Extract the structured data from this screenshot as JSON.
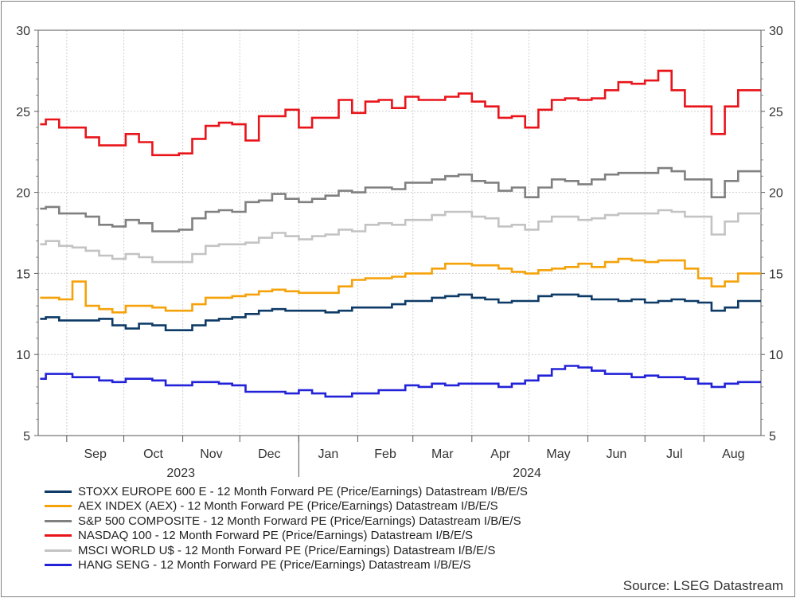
{
  "chart_data": {
    "type": "line",
    "ylim": [
      5,
      30
    ],
    "yticks": [
      "5",
      "10",
      "15",
      "20",
      "25",
      "30"
    ],
    "months": [
      {
        "label": "Sep",
        "start": "2023-09-01"
      },
      {
        "label": "Oct",
        "start": "2023-10-01"
      },
      {
        "label": "Nov",
        "start": "2023-11-01"
      },
      {
        "label": "Dec",
        "start": "2023-12-01"
      },
      {
        "label": "Jan",
        "start": "2024-01-01"
      },
      {
        "label": "Feb",
        "start": "2024-02-01"
      },
      {
        "label": "Mar",
        "start": "2024-03-01"
      },
      {
        "label": "Apr",
        "start": "2024-04-01"
      },
      {
        "label": "May",
        "start": "2024-05-01"
      },
      {
        "label": "Jun",
        "start": "2024-06-01"
      },
      {
        "label": "Jul",
        "start": "2024-07-01"
      },
      {
        "label": "Aug",
        "start": "2024-08-01"
      }
    ],
    "years": [
      {
        "label": "2023",
        "date": "2023-10-31"
      },
      {
        "label": "2024",
        "date": "2024-04-30"
      }
    ],
    "series": [
      {
        "name": "STOXX EUROPE 600 E - 12 Month Forward PE (Price/Earnings) Datastream I/B/E/S",
        "color": "#0d3a66",
        "x": [
          "2023-08-18",
          "2023-08-21",
          "2023-08-28",
          "2023-09-04",
          "2023-09-11",
          "2023-09-18",
          "2023-09-25",
          "2023-10-02",
          "2023-10-09",
          "2023-10-16",
          "2023-10-23",
          "2023-10-30",
          "2023-11-06",
          "2023-11-13",
          "2023-11-20",
          "2023-11-27",
          "2023-12-04",
          "2023-12-11",
          "2023-12-18",
          "2023-12-25",
          "2024-01-01",
          "2024-01-08",
          "2024-01-15",
          "2024-01-22",
          "2024-01-29",
          "2024-02-05",
          "2024-02-12",
          "2024-02-19",
          "2024-02-26",
          "2024-03-04",
          "2024-03-11",
          "2024-03-18",
          "2024-03-25",
          "2024-04-01",
          "2024-04-08",
          "2024-04-15",
          "2024-04-22",
          "2024-04-29",
          "2024-05-06",
          "2024-05-13",
          "2024-05-20",
          "2024-05-27",
          "2024-06-03",
          "2024-06-10",
          "2024-06-17",
          "2024-06-24",
          "2024-07-01",
          "2024-07-08",
          "2024-07-15",
          "2024-07-22",
          "2024-07-29",
          "2024-08-05",
          "2024-08-12",
          "2024-08-19",
          "2024-08-26"
        ],
        "values": [
          12.2,
          12.3,
          12.1,
          12.1,
          12.1,
          12.2,
          11.8,
          11.6,
          11.9,
          11.8,
          11.5,
          11.5,
          11.8,
          12.1,
          12.2,
          12.3,
          12.5,
          12.7,
          12.8,
          12.7,
          12.7,
          12.7,
          12.6,
          12.7,
          12.9,
          12.9,
          12.9,
          13.1,
          13.3,
          13.3,
          13.5,
          13.6,
          13.7,
          13.5,
          13.4,
          13.2,
          13.3,
          13.3,
          13.6,
          13.7,
          13.7,
          13.6,
          13.4,
          13.4,
          13.3,
          13.4,
          13.2,
          13.3,
          13.4,
          13.3,
          13.2,
          12.7,
          12.9,
          13.3,
          13.3
        ]
      },
      {
        "name": "AEX INDEX (AEX) - 12 Month Forward PE (Price/Earnings) Datastream I/B/E/S",
        "color": "#f5a20a",
        "x": [
          "2023-08-18",
          "2023-08-21",
          "2023-08-28",
          "2023-09-04",
          "2023-09-11",
          "2023-09-18",
          "2023-09-25",
          "2023-10-02",
          "2023-10-09",
          "2023-10-16",
          "2023-10-23",
          "2023-10-30",
          "2023-11-06",
          "2023-11-13",
          "2023-11-20",
          "2023-11-27",
          "2023-12-04",
          "2023-12-11",
          "2023-12-18",
          "2023-12-25",
          "2024-01-01",
          "2024-01-08",
          "2024-01-15",
          "2024-01-22",
          "2024-01-29",
          "2024-02-05",
          "2024-02-12",
          "2024-02-19",
          "2024-02-26",
          "2024-03-04",
          "2024-03-11",
          "2024-03-18",
          "2024-03-25",
          "2024-04-01",
          "2024-04-08",
          "2024-04-15",
          "2024-04-22",
          "2024-04-29",
          "2024-05-06",
          "2024-05-13",
          "2024-05-20",
          "2024-05-27",
          "2024-06-03",
          "2024-06-10",
          "2024-06-17",
          "2024-06-24",
          "2024-07-01",
          "2024-07-08",
          "2024-07-15",
          "2024-07-22",
          "2024-07-29",
          "2024-08-05",
          "2024-08-12",
          "2024-08-19",
          "2024-08-26"
        ],
        "values": [
          13.5,
          13.5,
          13.4,
          14.5,
          13.0,
          12.8,
          12.6,
          13.0,
          13.0,
          12.9,
          12.7,
          12.7,
          13.1,
          13.5,
          13.5,
          13.6,
          13.7,
          13.9,
          14.0,
          13.9,
          13.8,
          13.8,
          13.8,
          14.2,
          14.6,
          14.7,
          14.7,
          14.8,
          15.0,
          15.0,
          15.3,
          15.6,
          15.6,
          15.5,
          15.5,
          15.3,
          15.1,
          15.0,
          15.2,
          15.3,
          15.4,
          15.6,
          15.4,
          15.7,
          15.9,
          15.8,
          15.7,
          15.8,
          15.8,
          15.3,
          14.7,
          14.2,
          14.5,
          15.0,
          15.0
        ]
      },
      {
        "name": "S&P 500 COMPOSITE - 12 Month Forward PE (Price/Earnings) Datastream I/B/E/S",
        "color": "#808080",
        "x": [
          "2023-08-18",
          "2023-08-21",
          "2023-08-28",
          "2023-09-04",
          "2023-09-11",
          "2023-09-18",
          "2023-09-25",
          "2023-10-02",
          "2023-10-09",
          "2023-10-16",
          "2023-10-23",
          "2023-10-30",
          "2023-11-06",
          "2023-11-13",
          "2023-11-20",
          "2023-11-27",
          "2023-12-04",
          "2023-12-11",
          "2023-12-18",
          "2023-12-25",
          "2024-01-01",
          "2024-01-08",
          "2024-01-15",
          "2024-01-22",
          "2024-01-29",
          "2024-02-05",
          "2024-02-12",
          "2024-02-19",
          "2024-02-26",
          "2024-03-04",
          "2024-03-11",
          "2024-03-18",
          "2024-03-25",
          "2024-04-01",
          "2024-04-08",
          "2024-04-15",
          "2024-04-22",
          "2024-04-29",
          "2024-05-06",
          "2024-05-13",
          "2024-05-20",
          "2024-05-27",
          "2024-06-03",
          "2024-06-10",
          "2024-06-17",
          "2024-06-24",
          "2024-07-01",
          "2024-07-08",
          "2024-07-15",
          "2024-07-22",
          "2024-07-29",
          "2024-08-05",
          "2024-08-12",
          "2024-08-19",
          "2024-08-26"
        ],
        "values": [
          19.0,
          19.1,
          18.7,
          18.7,
          18.5,
          18.0,
          17.9,
          18.3,
          18.1,
          17.6,
          17.6,
          17.7,
          18.4,
          18.8,
          18.9,
          18.8,
          19.4,
          19.5,
          19.9,
          19.6,
          19.4,
          19.6,
          19.8,
          20.1,
          20.0,
          20.3,
          20.3,
          20.2,
          20.6,
          20.6,
          20.8,
          21.0,
          21.1,
          20.7,
          20.6,
          20.1,
          20.3,
          19.7,
          20.3,
          20.8,
          20.7,
          20.5,
          20.8,
          21.1,
          21.2,
          21.2,
          21.2,
          21.5,
          21.3,
          20.8,
          20.8,
          19.7,
          20.7,
          21.3,
          21.3
        ]
      },
      {
        "name": "NASDAQ 100 - 12 Month Forward PE (Price/Earnings) Datastream I/B/E/S",
        "color": "#e8141a",
        "x": [
          "2023-08-18",
          "2023-08-21",
          "2023-08-28",
          "2023-09-04",
          "2023-09-11",
          "2023-09-18",
          "2023-09-25",
          "2023-10-02",
          "2023-10-09",
          "2023-10-16",
          "2023-10-23",
          "2023-10-30",
          "2023-11-06",
          "2023-11-13",
          "2023-11-20",
          "2023-11-27",
          "2023-12-04",
          "2023-12-11",
          "2023-12-18",
          "2023-12-25",
          "2024-01-01",
          "2024-01-08",
          "2024-01-15",
          "2024-01-22",
          "2024-01-29",
          "2024-02-05",
          "2024-02-12",
          "2024-02-19",
          "2024-02-26",
          "2024-03-04",
          "2024-03-11",
          "2024-03-18",
          "2024-03-25",
          "2024-04-01",
          "2024-04-08",
          "2024-04-15",
          "2024-04-22",
          "2024-04-29",
          "2024-05-06",
          "2024-05-13",
          "2024-05-20",
          "2024-05-27",
          "2024-06-03",
          "2024-06-10",
          "2024-06-17",
          "2024-06-24",
          "2024-07-01",
          "2024-07-08",
          "2024-07-15",
          "2024-07-22",
          "2024-07-29",
          "2024-08-05",
          "2024-08-12",
          "2024-08-19",
          "2024-08-26"
        ],
        "values": [
          24.2,
          24.5,
          24.0,
          24.0,
          23.4,
          22.9,
          22.9,
          23.6,
          23.1,
          22.3,
          22.3,
          22.4,
          23.3,
          24.1,
          24.3,
          24.2,
          23.2,
          24.7,
          24.7,
          25.1,
          24.0,
          24.6,
          24.6,
          25.7,
          24.9,
          25.6,
          25.7,
          25.2,
          25.9,
          25.7,
          25.7,
          25.9,
          26.1,
          25.6,
          25.3,
          24.6,
          24.7,
          24.0,
          25.1,
          25.7,
          25.8,
          25.7,
          25.8,
          26.3,
          26.8,
          26.7,
          26.9,
          27.5,
          26.3,
          25.3,
          25.3,
          23.6,
          25.3,
          26.3,
          26.3
        ]
      },
      {
        "name": "MSCI WORLD U$ - 12 Month Forward PE (Price/Earnings) Datastream I/B/E/S",
        "color": "#c3c3c3",
        "x": [
          "2023-08-18",
          "2023-08-21",
          "2023-08-28",
          "2023-09-04",
          "2023-09-11",
          "2023-09-18",
          "2023-09-25",
          "2023-10-02",
          "2023-10-09",
          "2023-10-16",
          "2023-10-23",
          "2023-10-30",
          "2023-11-06",
          "2023-11-13",
          "2023-11-20",
          "2023-11-27",
          "2023-12-04",
          "2023-12-11",
          "2023-12-18",
          "2023-12-25",
          "2024-01-01",
          "2024-01-08",
          "2024-01-15",
          "2024-01-22",
          "2024-01-29",
          "2024-02-05",
          "2024-02-12",
          "2024-02-19",
          "2024-02-26",
          "2024-03-04",
          "2024-03-11",
          "2024-03-18",
          "2024-03-25",
          "2024-04-01",
          "2024-04-08",
          "2024-04-15",
          "2024-04-22",
          "2024-04-29",
          "2024-05-06",
          "2024-05-13",
          "2024-05-20",
          "2024-05-27",
          "2024-06-03",
          "2024-06-10",
          "2024-06-17",
          "2024-06-24",
          "2024-07-01",
          "2024-07-08",
          "2024-07-15",
          "2024-07-22",
          "2024-07-29",
          "2024-08-05",
          "2024-08-12",
          "2024-08-19",
          "2024-08-26"
        ],
        "values": [
          16.8,
          17.0,
          16.7,
          16.6,
          16.4,
          16.1,
          15.9,
          16.2,
          16.0,
          15.7,
          15.7,
          15.7,
          16.2,
          16.7,
          16.8,
          16.8,
          16.9,
          17.2,
          17.5,
          17.3,
          17.1,
          17.3,
          17.4,
          17.7,
          17.6,
          18.0,
          18.1,
          18.0,
          18.3,
          18.3,
          18.6,
          18.8,
          18.8,
          18.5,
          18.4,
          17.9,
          18.0,
          17.7,
          18.2,
          18.5,
          18.5,
          18.3,
          18.4,
          18.6,
          18.7,
          18.7,
          18.7,
          18.9,
          18.8,
          18.5,
          18.5,
          17.4,
          18.2,
          18.7,
          18.7
        ]
      },
      {
        "name": "HANG SENG - 12 Month Forward PE (Price/Earnings) Datastream I/B/E/S",
        "color": "#2222d8",
        "x": [
          "2023-08-18",
          "2023-08-21",
          "2023-08-28",
          "2023-09-04",
          "2023-09-11",
          "2023-09-18",
          "2023-09-25",
          "2023-10-02",
          "2023-10-09",
          "2023-10-16",
          "2023-10-23",
          "2023-10-30",
          "2023-11-06",
          "2023-11-13",
          "2023-11-20",
          "2023-11-27",
          "2023-12-04",
          "2023-12-11",
          "2023-12-18",
          "2023-12-25",
          "2024-01-01",
          "2024-01-08",
          "2024-01-15",
          "2024-01-22",
          "2024-01-29",
          "2024-02-05",
          "2024-02-12",
          "2024-02-19",
          "2024-02-26",
          "2024-03-04",
          "2024-03-11",
          "2024-03-18",
          "2024-03-25",
          "2024-04-01",
          "2024-04-08",
          "2024-04-15",
          "2024-04-22",
          "2024-04-29",
          "2024-05-06",
          "2024-05-13",
          "2024-05-20",
          "2024-05-27",
          "2024-06-03",
          "2024-06-10",
          "2024-06-17",
          "2024-06-24",
          "2024-07-01",
          "2024-07-08",
          "2024-07-15",
          "2024-07-22",
          "2024-07-29",
          "2024-08-05",
          "2024-08-12",
          "2024-08-19",
          "2024-08-26"
        ],
        "values": [
          8.5,
          8.8,
          8.8,
          8.6,
          8.6,
          8.4,
          8.3,
          8.5,
          8.5,
          8.4,
          8.1,
          8.1,
          8.3,
          8.3,
          8.2,
          8.1,
          7.7,
          7.7,
          7.7,
          7.6,
          7.8,
          7.6,
          7.4,
          7.4,
          7.6,
          7.6,
          7.8,
          7.8,
          8.1,
          8.0,
          8.2,
          8.1,
          8.2,
          8.2,
          8.2,
          8.0,
          8.2,
          8.4,
          8.7,
          9.1,
          9.3,
          9.2,
          9.0,
          8.8,
          8.8,
          8.6,
          8.7,
          8.6,
          8.6,
          8.5,
          8.2,
          8.0,
          8.2,
          8.3,
          8.3
        ]
      }
    ]
  },
  "source_label": "Source: LSEG Datastream"
}
